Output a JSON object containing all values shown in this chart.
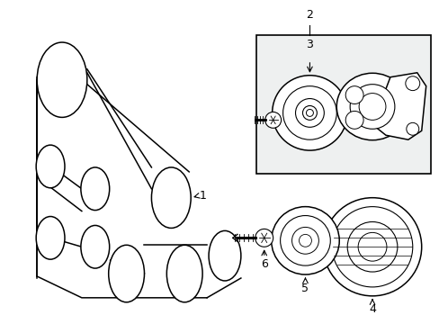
{
  "bg_color": "#ffffff",
  "box_fill": "#eef0f0",
  "box_border": "#000000",
  "line_color": "#000000",
  "label_fontsize": 9,
  "figsize": [
    4.89,
    3.6
  ],
  "dpi": 100
}
